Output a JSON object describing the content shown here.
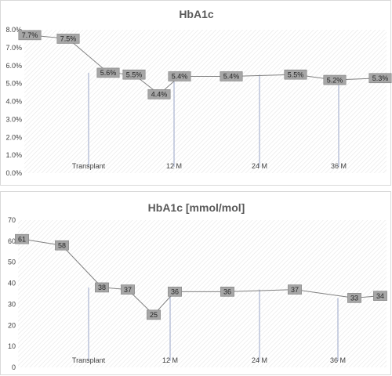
{
  "chart_data": [
    {
      "type": "line",
      "title": "HbA1c",
      "ylim": [
        0,
        8
      ],
      "yticks": [
        "0.0%",
        "1.0%",
        "2.0%",
        "3.0%",
        "4.0%",
        "5.0%",
        "6.0%",
        "7.0%",
        "8.0%"
      ],
      "x_markers": [
        "Transplant",
        "12 M",
        "24 M",
        "36 M"
      ],
      "values": [
        7.7,
        7.5,
        5.6,
        5.5,
        4.4,
        5.4,
        5.4,
        5.5,
        5.2,
        5.3
      ],
      "labels": [
        "7.7%",
        "7.5%",
        "5.6%",
        "5.5%",
        "4.4%",
        "5.4%",
        "5.4%",
        "5.5%",
        "5.2%",
        "5.3%"
      ],
      "grid": false,
      "line_color": "#808080",
      "label_fill": "#a6a6a6"
    },
    {
      "type": "line",
      "title": "HbA1c [mmol/mol]",
      "ylim": [
        0,
        70
      ],
      "yticks": [
        "0",
        "10",
        "20",
        "30",
        "40",
        "50",
        "60",
        "70"
      ],
      "x_markers": [
        "Transplant",
        "12 M",
        "24 M",
        "36 M"
      ],
      "values": [
        61,
        58,
        38,
        37,
        25,
        36,
        36,
        37,
        33,
        34
      ],
      "labels": [
        "61",
        "58",
        "38",
        "37",
        "25",
        "36",
        "36",
        "37",
        "33",
        "34"
      ],
      "grid": false,
      "line_color": "#808080",
      "label_fill": "#a6a6a6"
    }
  ]
}
